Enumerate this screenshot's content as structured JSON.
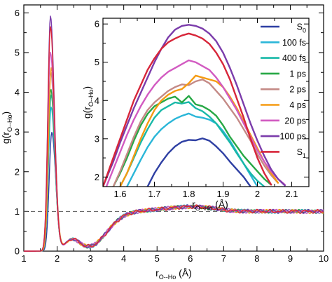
{
  "colors": {
    "S0": "#2e3fa3",
    "100 fs": "#2ab6d8",
    "400 fs": "#18b8a8",
    "1 ps": "#27a845",
    "2 ps": "#c48a86",
    "4 ps": "#f59b12",
    "20 ps": "#d25ac1",
    "100 ps": "#7b3cab",
    "S1": "#d7263a"
  },
  "chart_data": [
    {
      "type": "line",
      "id": "main",
      "xlabel": {
        "base": "r",
        "sub": "O--Ho",
        "unit": " (Å)"
      },
      "ylabel": {
        "base": "g(r",
        "sub": "O--Ho",
        "close": ")"
      },
      "xlim": [
        1,
        10
      ],
      "ylim": [
        0,
        6.2
      ],
      "xticks": [
        "1",
        "2",
        "3",
        "4",
        "5",
        "6",
        "7",
        "8",
        "9",
        "10"
      ],
      "yticks": [
        "0",
        "1",
        "2",
        "3",
        "4",
        "5",
        "6"
      ],
      "reference_line": {
        "y": 1,
        "style": "dashed"
      },
      "series": [
        {
          "key": "S0",
          "peak": 3.02,
          "peak_x": 1.84
        },
        {
          "key": "100 fs",
          "peak": 3.66,
          "peak_x": 1.82
        },
        {
          "key": "400 fs",
          "peak": 3.97,
          "peak_x": 1.82
        },
        {
          "key": "1 ps",
          "peak": 4.12,
          "peak_x": 1.81
        },
        {
          "key": "2 ps",
          "peak": 4.55,
          "peak_x": 1.81
        },
        {
          "key": "4 ps",
          "peak": 4.66,
          "peak_x": 1.82
        },
        {
          "key": "20 ps",
          "peak": 5.05,
          "peak_x": 1.8
        },
        {
          "key": "100 ps",
          "peak": 5.97,
          "peak_x": 1.8
        },
        {
          "key": "S1",
          "peak": 5.7,
          "peak_x": 1.8
        }
      ]
    },
    {
      "type": "line",
      "id": "inset",
      "xlabel": {
        "base": "r",
        "sub": "O--Ho",
        "unit": " (Å)"
      },
      "ylabel": {
        "base": "g(r",
        "sub": "O--Ho",
        "close": ")"
      },
      "xlim": [
        1.55,
        2.15
      ],
      "ylim": [
        1.75,
        6.15
      ],
      "xticks": [
        "1.6",
        "1.7",
        "1.8",
        "1.9",
        "2",
        "2.1"
      ],
      "yticks": [
        "2",
        "3",
        "4",
        "5",
        "6"
      ],
      "series": [
        {
          "key": "S0",
          "x": [
            1.68,
            1.7,
            1.72,
            1.74,
            1.76,
            1.78,
            1.8,
            1.82,
            1.84,
            1.86,
            1.88,
            1.9,
            1.92,
            1.94,
            1.96,
            1.98
          ],
          "y": [
            1.75,
            2.1,
            2.38,
            2.62,
            2.8,
            2.92,
            2.97,
            2.96,
            3.01,
            2.95,
            2.8,
            2.62,
            2.4,
            2.2,
            2.0,
            1.75
          ]
        },
        {
          "key": "100 fs",
          "x": [
            1.62,
            1.64,
            1.66,
            1.68,
            1.7,
            1.72,
            1.74,
            1.76,
            1.78,
            1.8,
            1.82,
            1.84,
            1.86,
            1.88,
            1.9,
            1.92,
            1.94,
            1.96,
            1.98,
            2.0
          ],
          "y": [
            1.75,
            2.1,
            2.45,
            2.78,
            3.05,
            3.25,
            3.4,
            3.52,
            3.6,
            3.66,
            3.58,
            3.55,
            3.5,
            3.4,
            3.2,
            2.95,
            2.65,
            2.35,
            2.05,
            1.75
          ]
        },
        {
          "key": "400 fs",
          "x": [
            1.6,
            1.62,
            1.64,
            1.66,
            1.68,
            1.7,
            1.72,
            1.74,
            1.76,
            1.78,
            1.8,
            1.82,
            1.84,
            1.86,
            1.88,
            1.9,
            1.92,
            1.94,
            1.96,
            1.98,
            2.0,
            2.02
          ],
          "y": [
            1.75,
            2.1,
            2.5,
            2.9,
            3.25,
            3.55,
            3.75,
            3.85,
            3.95,
            3.92,
            3.96,
            3.8,
            3.72,
            3.58,
            3.4,
            3.15,
            2.9,
            2.62,
            2.35,
            2.1,
            1.9,
            1.75
          ]
        },
        {
          "key": "1 ps",
          "x": [
            1.58,
            1.6,
            1.62,
            1.64,
            1.66,
            1.68,
            1.7,
            1.72,
            1.74,
            1.76,
            1.78,
            1.8,
            1.82,
            1.84,
            1.86,
            1.88,
            1.9,
            1.92,
            1.94,
            1.96,
            1.98,
            2.0,
            2.02,
            2.04
          ],
          "y": [
            1.75,
            2.1,
            2.5,
            2.95,
            3.35,
            3.65,
            3.85,
            3.95,
            4.05,
            4.1,
            3.95,
            4.12,
            3.9,
            3.85,
            3.75,
            3.6,
            3.35,
            3.05,
            2.8,
            2.55,
            2.35,
            2.15,
            1.95,
            1.8
          ]
        },
        {
          "key": "2 ps",
          "x": [
            1.58,
            1.6,
            1.62,
            1.64,
            1.66,
            1.68,
            1.7,
            1.72,
            1.74,
            1.76,
            1.78,
            1.8,
            1.82,
            1.84,
            1.86,
            1.88,
            1.9,
            1.92,
            1.94,
            1.96,
            1.98,
            2.0,
            2.02,
            2.04,
            2.06
          ],
          "y": [
            1.75,
            2.15,
            2.6,
            3.05,
            3.45,
            3.75,
            3.95,
            4.1,
            4.25,
            4.35,
            4.42,
            4.4,
            4.5,
            4.55,
            4.45,
            4.25,
            4.05,
            3.8,
            3.55,
            3.25,
            2.95,
            2.6,
            2.3,
            2.05,
            1.85
          ]
        },
        {
          "key": "4 ps",
          "x": [
            1.6,
            1.62,
            1.64,
            1.66,
            1.68,
            1.7,
            1.72,
            1.74,
            1.76,
            1.78,
            1.8,
            1.82,
            1.84,
            1.86,
            1.88,
            1.9,
            1.92,
            1.94,
            1.96,
            1.98,
            2.0,
            2.02,
            2.04,
            2.06
          ],
          "y": [
            1.75,
            2.1,
            2.55,
            3.0,
            3.4,
            3.75,
            4.0,
            4.15,
            4.25,
            4.3,
            4.45,
            4.65,
            4.6,
            4.55,
            4.5,
            4.35,
            4.1,
            3.8,
            3.45,
            3.1,
            2.75,
            2.4,
            2.1,
            1.85
          ]
        },
        {
          "key": "20 ps",
          "x": [
            1.56,
            1.58,
            1.6,
            1.62,
            1.64,
            1.66,
            1.68,
            1.7,
            1.72,
            1.74,
            1.76,
            1.78,
            1.8,
            1.82,
            1.84,
            1.86,
            1.88,
            1.9,
            1.92,
            1.94,
            1.96,
            1.98,
            2.0,
            2.02,
            2.04,
            2.06,
            2.08
          ],
          "y": [
            1.75,
            2.2,
            2.65,
            3.1,
            3.5,
            3.85,
            4.15,
            4.4,
            4.6,
            4.75,
            4.85,
            4.95,
            5.05,
            5.0,
            4.9,
            4.8,
            4.6,
            4.35,
            4.05,
            3.75,
            3.4,
            3.05,
            2.7,
            2.4,
            2.15,
            1.95,
            1.8
          ]
        },
        {
          "key": "100 ps",
          "x": [
            1.55,
            1.58,
            1.6,
            1.62,
            1.64,
            1.66,
            1.68,
            1.7,
            1.72,
            1.74,
            1.76,
            1.78,
            1.8,
            1.82,
            1.84,
            1.86,
            1.88,
            1.9,
            1.92,
            1.94,
            1.96,
            1.98,
            2.0,
            2.02,
            2.04,
            2.06,
            2.08
          ],
          "y": [
            1.75,
            2.4,
            2.9,
            3.35,
            3.8,
            4.2,
            4.6,
            5.0,
            5.35,
            5.65,
            5.85,
            5.95,
            5.98,
            5.95,
            5.88,
            5.75,
            5.55,
            5.25,
            4.85,
            4.4,
            3.9,
            3.4,
            2.95,
            2.55,
            2.2,
            1.95,
            1.78
          ]
        },
        {
          "key": "S1",
          "x": [
            1.55,
            1.58,
            1.6,
            1.62,
            1.64,
            1.66,
            1.68,
            1.7,
            1.72,
            1.74,
            1.76,
            1.78,
            1.8,
            1.82,
            1.84,
            1.86,
            1.88,
            1.9,
            1.92,
            1.94,
            1.96,
            1.98,
            2.0,
            2.02,
            2.04
          ],
          "y": [
            1.75,
            2.5,
            3.0,
            3.5,
            4.0,
            4.4,
            4.8,
            5.1,
            5.35,
            5.52,
            5.62,
            5.7,
            5.75,
            5.7,
            5.62,
            5.48,
            5.25,
            4.95,
            4.55,
            4.05,
            3.55,
            3.0,
            2.5,
            2.1,
            1.8
          ]
        }
      ]
    }
  ],
  "legend": {
    "placement": "inset-right",
    "entries": [
      {
        "key": "S0",
        "base": "S",
        "sub": "0"
      },
      {
        "key": "100 fs",
        "base": "100 fs",
        "sub": ""
      },
      {
        "key": "400 fs",
        "base": "400 fs",
        "sub": ""
      },
      {
        "key": "1 ps",
        "base": "1 ps",
        "sub": ""
      },
      {
        "key": "2 ps",
        "base": "2 ps",
        "sub": ""
      },
      {
        "key": "4 ps",
        "base": "4 ps",
        "sub": ""
      },
      {
        "key": "20 ps",
        "base": "20 ps",
        "sub": ""
      },
      {
        "key": "100 ps",
        "base": "100 ps",
        "sub": ""
      },
      {
        "key": "S1",
        "base": "S",
        "sub": "1"
      }
    ]
  }
}
